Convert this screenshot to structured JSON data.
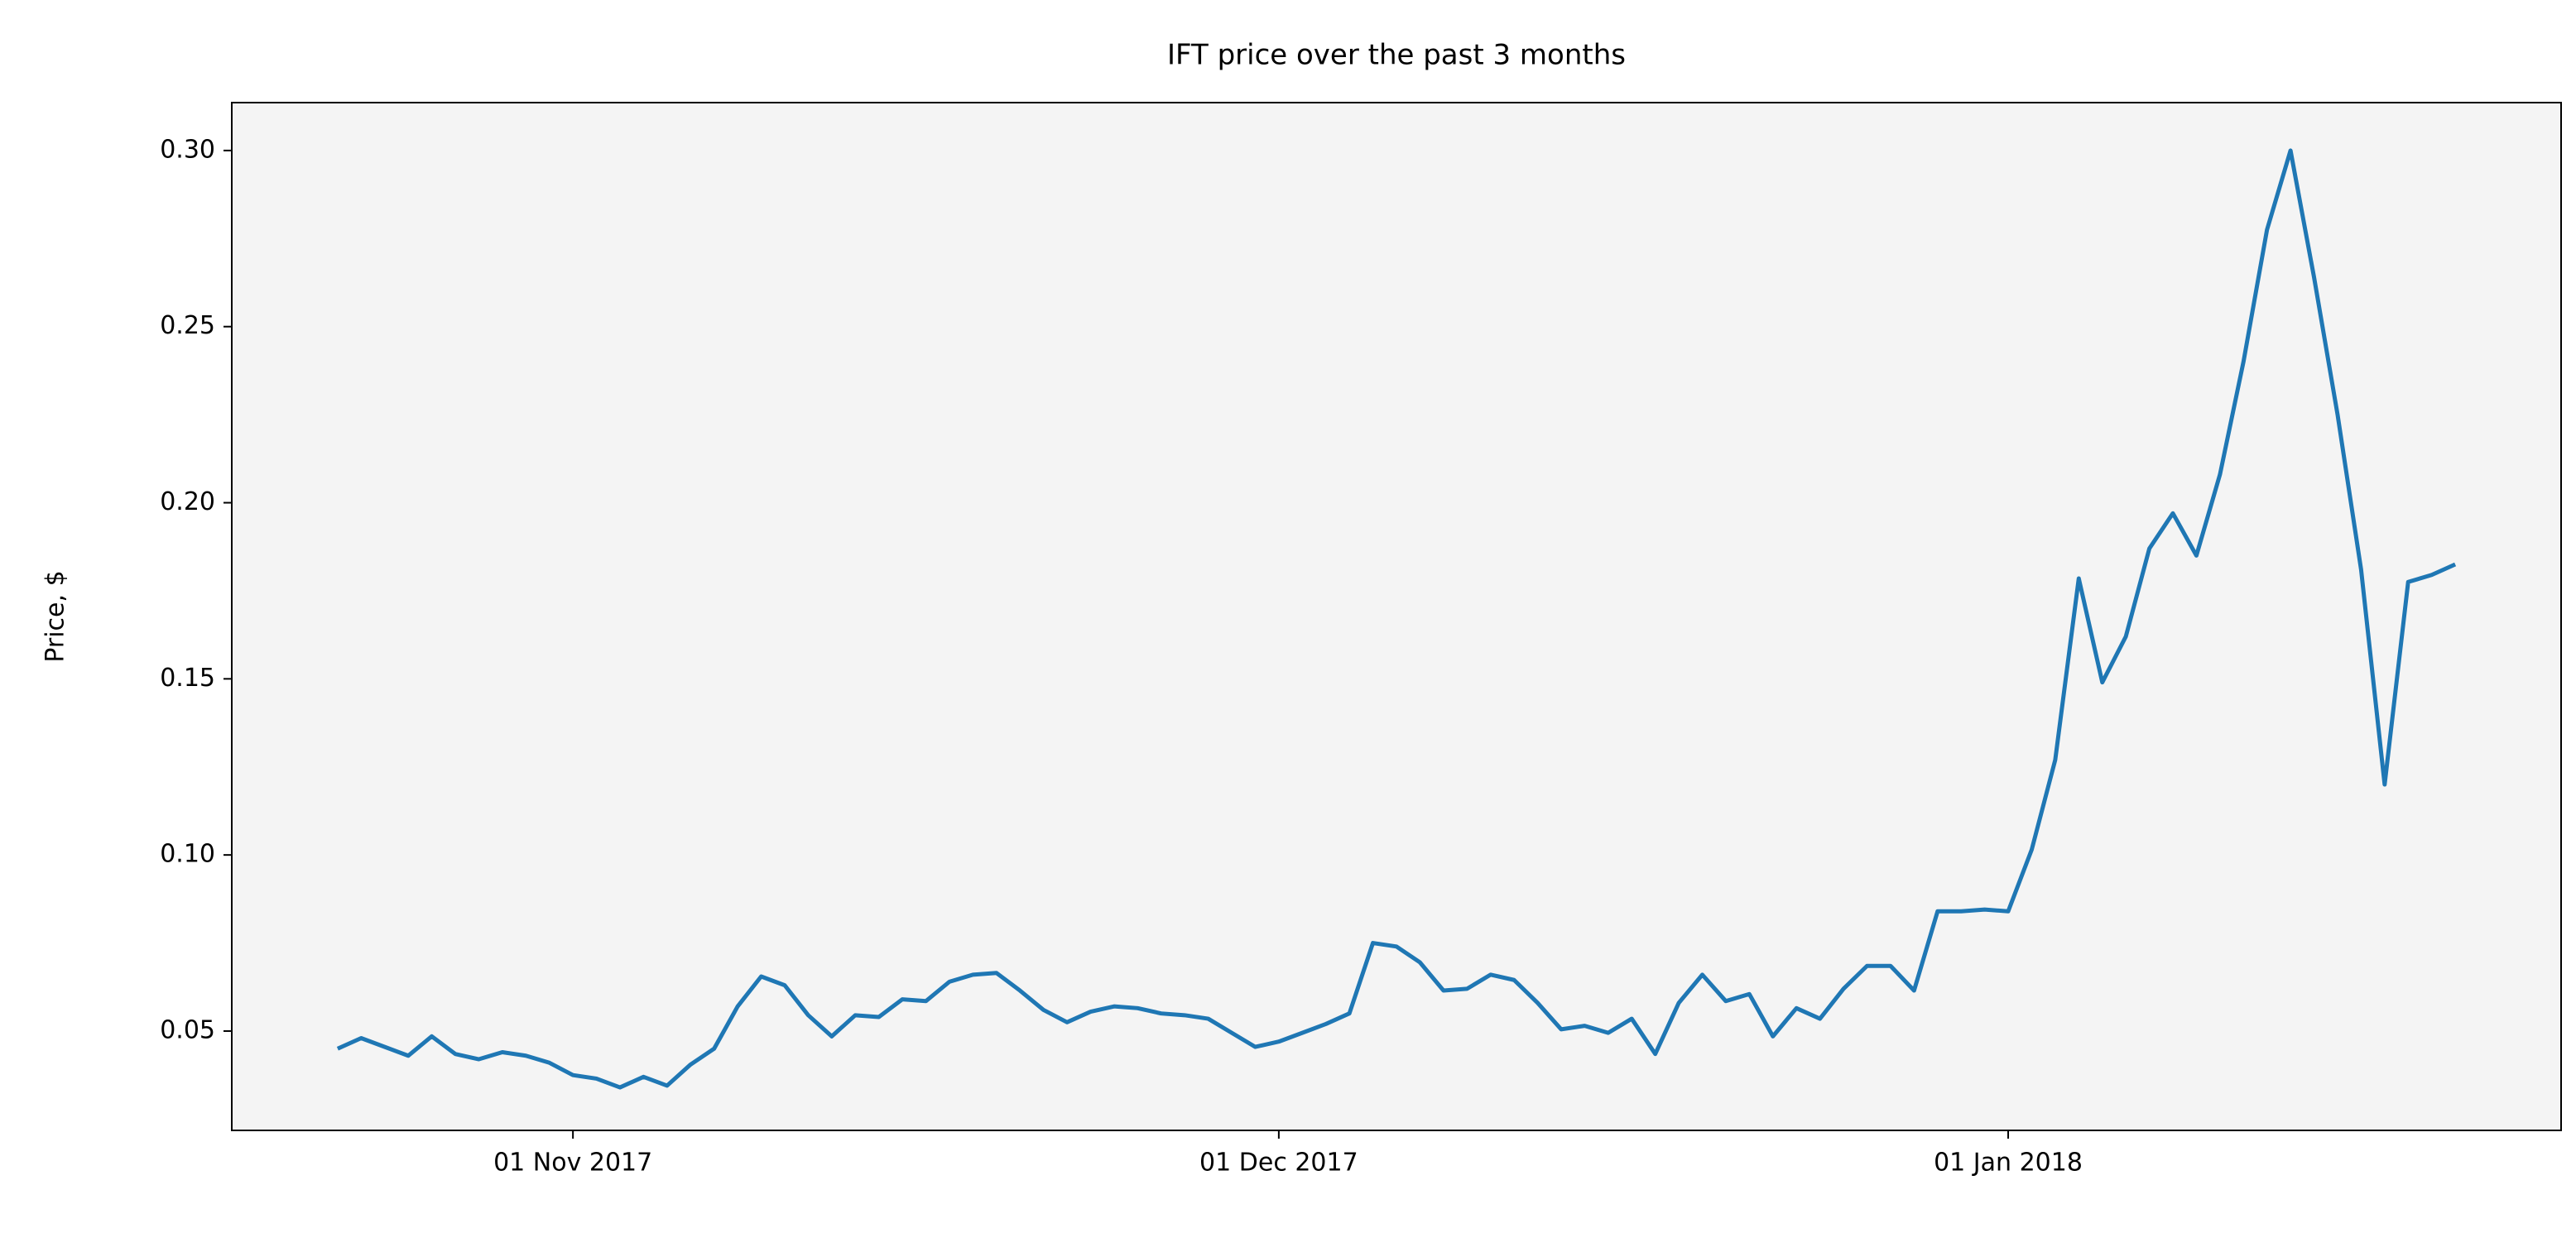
{
  "chart_data": {
    "type": "line",
    "title": "IFT price over the past 3 months",
    "y_label": "Price, $",
    "x": [
      "2017-10-22",
      "2017-10-23",
      "2017-10-24",
      "2017-10-25",
      "2017-10-26",
      "2017-10-27",
      "2017-10-28",
      "2017-10-29",
      "2017-10-30",
      "2017-10-31",
      "2017-11-01",
      "2017-11-02",
      "2017-11-03",
      "2017-11-04",
      "2017-11-05",
      "2017-11-06",
      "2017-11-07",
      "2017-11-08",
      "2017-11-09",
      "2017-11-10",
      "2017-11-11",
      "2017-11-12",
      "2017-11-13",
      "2017-11-14",
      "2017-11-15",
      "2017-11-16",
      "2017-11-17",
      "2017-11-18",
      "2017-11-19",
      "2017-11-20",
      "2017-11-21",
      "2017-11-22",
      "2017-11-23",
      "2017-11-24",
      "2017-11-25",
      "2017-11-26",
      "2017-11-27",
      "2017-11-28",
      "2017-11-29",
      "2017-11-30",
      "2017-12-01",
      "2017-12-02",
      "2017-12-03",
      "2017-12-04",
      "2017-12-05",
      "2017-12-06",
      "2017-12-07",
      "2017-12-08",
      "2017-12-09",
      "2017-12-10",
      "2017-12-11",
      "2017-12-12",
      "2017-12-13",
      "2017-12-14",
      "2017-12-15",
      "2017-12-16",
      "2017-12-17",
      "2017-12-18",
      "2017-12-19",
      "2017-12-20",
      "2017-12-21",
      "2017-12-22",
      "2017-12-23",
      "2017-12-24",
      "2017-12-25",
      "2017-12-26",
      "2017-12-27",
      "2017-12-28",
      "2017-12-29",
      "2017-12-30",
      "2017-12-31",
      "2018-01-01",
      "2018-01-02",
      "2018-01-03",
      "2018-01-04",
      "2018-01-05",
      "2018-01-06",
      "2018-01-07",
      "2018-01-08",
      "2018-01-09",
      "2018-01-10",
      "2018-01-11",
      "2018-01-12",
      "2018-01-13",
      "2018-01-14",
      "2018-01-15",
      "2018-01-16",
      "2018-01-17",
      "2018-01-18",
      "2018-01-19",
      "2018-01-20"
    ],
    "series": [
      {
        "name": "IFT",
        "color": "#1f77b4",
        "values": [
          0.045,
          0.048,
          0.0455,
          0.043,
          0.0485,
          0.0435,
          0.042,
          0.044,
          0.043,
          0.041,
          0.0375,
          0.0365,
          0.034,
          0.037,
          0.0345,
          0.0405,
          0.045,
          0.057,
          0.0655,
          0.063,
          0.0545,
          0.0485,
          0.0545,
          0.054,
          0.059,
          0.0585,
          0.064,
          0.066,
          0.0665,
          0.0615,
          0.056,
          0.0525,
          0.0555,
          0.057,
          0.0565,
          0.055,
          0.0545,
          0.0535,
          0.0495,
          0.0455,
          0.047,
          0.0495,
          0.052,
          0.055,
          0.075,
          0.074,
          0.0695,
          0.0615,
          0.062,
          0.066,
          0.0645,
          0.058,
          0.0505,
          0.0515,
          0.0495,
          0.0535,
          0.0435,
          0.058,
          0.066,
          0.0585,
          0.0605,
          0.0485,
          0.0565,
          0.0535,
          0.062,
          0.0685,
          0.0685,
          0.0615,
          0.084,
          0.084,
          0.0845,
          0.084,
          0.1015,
          0.127,
          0.1785,
          0.149,
          0.162,
          0.187,
          0.197,
          0.185,
          0.208,
          0.24,
          0.2775,
          0.3,
          0.264,
          0.225,
          0.181,
          0.12,
          0.1775,
          0.1795,
          0.1825
        ]
      }
    ],
    "xlim": [
      "2017-10-17T12:00:00Z",
      "2018-01-24T12:00:00Z"
    ],
    "xticks": [
      {
        "value": "2017-11-01",
        "label": "01 Nov 2017"
      },
      {
        "value": "2017-12-01",
        "label": "01 Dec 2017"
      },
      {
        "value": "2018-01-01",
        "label": "01 Jan 2018"
      }
    ],
    "ylim": [
      0.0218,
      0.3136
    ],
    "yticks": [
      {
        "value": 0.05,
        "label": "0.05"
      },
      {
        "value": 0.1,
        "label": "0.10"
      },
      {
        "value": 0.15,
        "label": "0.15"
      },
      {
        "value": 0.2,
        "label": "0.20"
      },
      {
        "value": 0.25,
        "label": "0.25"
      },
      {
        "value": 0.3,
        "label": "0.30"
      }
    ],
    "grid": false,
    "background": "#f4f4f4"
  }
}
